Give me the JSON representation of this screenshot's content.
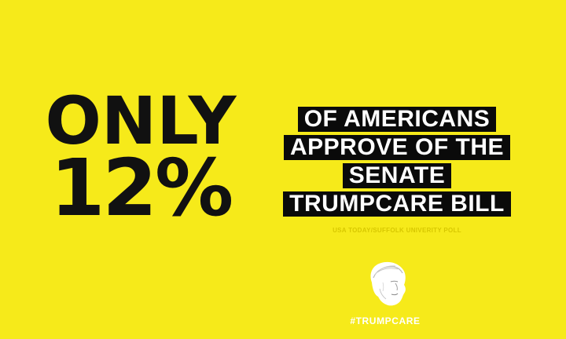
{
  "big_stat": {
    "line1": "ONLY",
    "line2": "12%"
  },
  "headline": {
    "lines": [
      "OF AMERICANS",
      "APPROVE OF THE",
      "SENATE",
      "TRUMPCARE BILL"
    ]
  },
  "source": "USA TODAY/SUFFOLK UNIVERITY POLL",
  "hashtag": "#TRUMPCARE",
  "colors": {
    "background": "#f6ea1a",
    "text_dark": "#111111",
    "highlight_bg": "#0a0a0a",
    "highlight_text": "#ffffff"
  },
  "icons": {
    "logo": "portrait-sketch-icon"
  }
}
